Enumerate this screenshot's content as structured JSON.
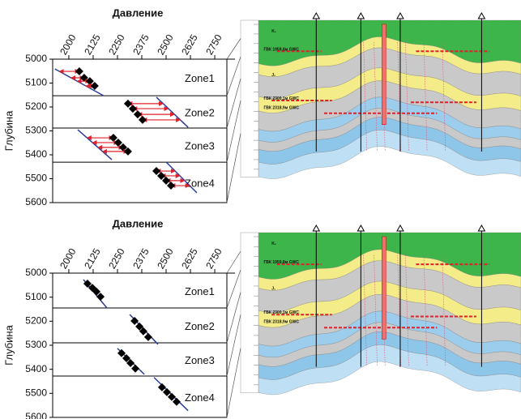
{
  "chart_data": [
    {
      "type": "scatter",
      "title": "Давление",
      "y_label": "Глубина",
      "xlim": [
        1917,
        2854
      ],
      "xticks": [
        2000,
        2125,
        2250,
        2375,
        2500,
        2625,
        2750
      ],
      "ylim": [
        5000,
        5600
      ],
      "yticks": [
        5000,
        5100,
        5200,
        5300,
        5400,
        5500,
        5600
      ],
      "y_inverted": true,
      "point_color": "#000000",
      "line_color": "#2a3b9c",
      "arrow_color": "#e0202a",
      "arrows": true,
      "boundaries": [
        5153,
        5288,
        5431
      ],
      "zones": [
        {
          "label": "Zone1",
          "x": [
            2054,
            2079,
            2108,
            2133
          ],
          "y": [
            5051,
            5078,
            5092,
            5112
          ],
          "line_x": [
            1929,
            2179
          ],
          "line_y": [
            5041,
            5153
          ]
        },
        {
          "label": "Zone2",
          "x": [
            2304,
            2329,
            2354,
            2379
          ],
          "y": [
            5186,
            5207,
            5231,
            5254
          ],
          "line_x": [
            2450,
            2613
          ],
          "line_y": [
            5159,
            5285
          ]
        },
        {
          "label": "Zone3",
          "x": [
            2229,
            2254,
            2279,
            2304
          ],
          "y": [
            5329,
            5349,
            5369,
            5386
          ],
          "line_x": [
            2046,
            2221
          ],
          "line_y": [
            5295,
            5420
          ]
        },
        {
          "label": "Zone4",
          "x": [
            2450,
            2475,
            2500,
            2525
          ],
          "y": [
            5468,
            5488,
            5508,
            5529
          ],
          "line_x": [
            2500,
            2658
          ],
          "line_y": [
            5430,
            5559
          ]
        }
      ]
    },
    {
      "type": "scatter",
      "title": "Давление",
      "y_label": "Глубина",
      "xlim": [
        1917,
        2854
      ],
      "xticks": [
        2000,
        2125,
        2250,
        2375,
        2500,
        2625,
        2750
      ],
      "ylim": [
        5000,
        5600
      ],
      "yticks": [
        5000,
        5100,
        5200,
        5300,
        5400,
        5500,
        5600
      ],
      "y_inverted": true,
      "point_color": "#000000",
      "line_color": "#2a3b9c",
      "arrow_color": "#e0202a",
      "arrows": false,
      "boundaries": [
        5145,
        5290,
        5428
      ],
      "zones": [
        {
          "label": "Zone1",
          "x": [
            2096,
            2121,
            2142,
            2163
          ],
          "y": [
            5044,
            5061,
            5077,
            5098
          ],
          "line_x": [
            2075,
            2196
          ],
          "line_y": [
            5027,
            5145
          ]
        },
        {
          "label": "Zone2",
          "x": [
            2338,
            2363,
            2383,
            2408
          ],
          "y": [
            5199,
            5222,
            5242,
            5266
          ],
          "line_x": [
            2313,
            2458
          ],
          "line_y": [
            5172,
            5296
          ]
        },
        {
          "label": "Zone3",
          "x": [
            2271,
            2296,
            2317,
            2342
          ],
          "y": [
            5333,
            5354,
            5374,
            5397
          ],
          "line_x": [
            2250,
            2388
          ],
          "line_y": [
            5313,
            5421
          ]
        },
        {
          "label": "Zone4",
          "x": [
            2479,
            2504,
            2529,
            2554
          ],
          "y": [
            5475,
            5495,
            5515,
            5535
          ],
          "line_x": [
            2438,
            2613
          ],
          "line_y": [
            5434,
            5572
          ]
        }
      ]
    }
  ],
  "cross_sections": [
    {
      "labels": [
        "K₁",
        "J₁",
        "ГВК 1959,8м GWC",
        "ГВК 2300,1м GWC",
        "ГВК 2318,9м GWC"
      ]
    },
    {
      "labels": [
        "K₁",
        "J₁",
        "ГВК 1959,8м GWC",
        "ГВК 2300,1м GWC",
        "ГВК 2318,9м GWC"
      ]
    }
  ]
}
